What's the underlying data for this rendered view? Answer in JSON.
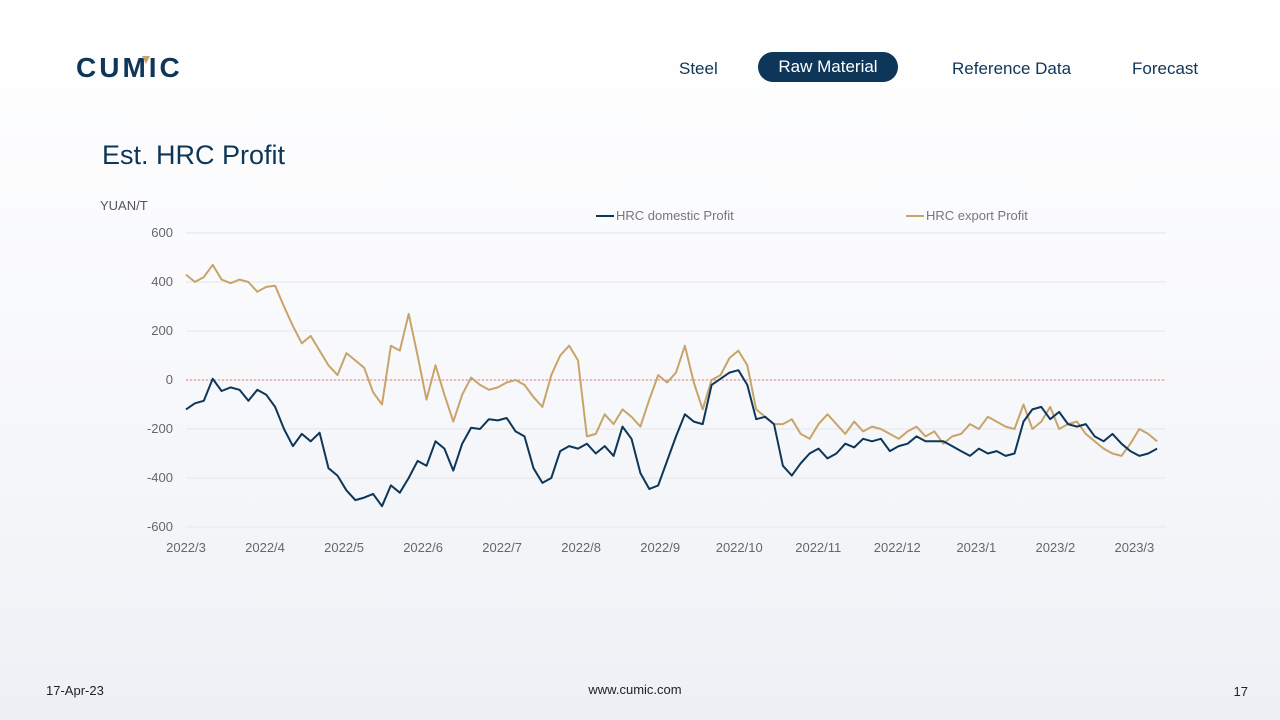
{
  "logo_text": "CUMIC",
  "nav": {
    "items": [
      {
        "label": "Steel",
        "active": false
      },
      {
        "label": "Raw Material",
        "active": true
      },
      {
        "label": "Reference Data",
        "active": false
      },
      {
        "label": "Forecast",
        "active": false
      }
    ]
  },
  "colors": {
    "brand_navy": "#0e3658",
    "brand_gold": "#c9a46a",
    "zero_line": "#e07a7a"
  },
  "page": {
    "title": "Est. HRC Profit"
  },
  "footer": {
    "date": "17-Apr-23",
    "url": "www.cumic.com",
    "page_number": "17"
  },
  "chart_data": {
    "type": "line",
    "title": "",
    "ylabel": "YUAN/T",
    "xlabel": "",
    "ylim": [
      -600,
      600
    ],
    "y_ticks": [
      600,
      400,
      200,
      0,
      -200,
      -400,
      -600
    ],
    "y_tick_labels": [
      "600",
      "400",
      "200",
      "0",
      "-200",
      "-400",
      "-600"
    ],
    "x_ticks": [
      "2022/3",
      "2022/4",
      "2022/5",
      "2022/6",
      "2022/7",
      "2022/8",
      "2022/9",
      "2022/10",
      "2022/11",
      "2022/12",
      "2023/1",
      "2023/2",
      "2023/3"
    ],
    "x_range": [
      2022.17,
      2023.27
    ],
    "reference_line": {
      "y": 0,
      "style": "dotted",
      "color": "#e07a7a"
    },
    "legend_position": "top",
    "series": [
      {
        "name": "HRC domestic Profit",
        "color": "#0e3658",
        "points": [
          [
            2022.17,
            -120
          ],
          [
            2022.18,
            -95
          ],
          [
            2022.19,
            -85
          ],
          [
            2022.2,
            5
          ],
          [
            2022.21,
            -45
          ],
          [
            2022.22,
            -30
          ],
          [
            2022.23,
            -40
          ],
          [
            2022.24,
            -85
          ],
          [
            2022.25,
            -40
          ],
          [
            2022.26,
            -60
          ],
          [
            2022.27,
            -110
          ],
          [
            2022.28,
            -200
          ],
          [
            2022.29,
            -270
          ],
          [
            2022.3,
            -220
          ],
          [
            2022.31,
            -250
          ],
          [
            2022.32,
            -215
          ],
          [
            2022.33,
            -360
          ],
          [
            2022.34,
            -390
          ],
          [
            2022.35,
            -450
          ],
          [
            2022.36,
            -490
          ],
          [
            2022.37,
            -480
          ],
          [
            2022.38,
            -465
          ],
          [
            2022.39,
            -515
          ],
          [
            2022.4,
            -430
          ],
          [
            2022.41,
            -460
          ],
          [
            2022.42,
            -400
          ],
          [
            2022.43,
            -330
          ],
          [
            2022.44,
            -350
          ],
          [
            2022.45,
            -250
          ],
          [
            2022.46,
            -280
          ],
          [
            2022.47,
            -370
          ],
          [
            2022.48,
            -260
          ],
          [
            2022.49,
            -195
          ],
          [
            2022.5,
            -200
          ],
          [
            2022.51,
            -160
          ],
          [
            2022.52,
            -165
          ],
          [
            2022.53,
            -155
          ],
          [
            2022.54,
            -210
          ],
          [
            2022.55,
            -230
          ],
          [
            2022.56,
            -360
          ],
          [
            2022.57,
            -420
          ],
          [
            2022.58,
            -400
          ],
          [
            2022.59,
            -290
          ],
          [
            2022.6,
            -270
          ],
          [
            2022.61,
            -280
          ],
          [
            2022.62,
            -260
          ],
          [
            2022.63,
            -300
          ],
          [
            2022.64,
            -270
          ],
          [
            2022.65,
            -310
          ],
          [
            2022.66,
            -190
          ],
          [
            2022.67,
            -240
          ],
          [
            2022.68,
            -380
          ],
          [
            2022.69,
            -445
          ],
          [
            2022.7,
            -430
          ],
          [
            2022.71,
            -330
          ],
          [
            2022.72,
            -230
          ],
          [
            2022.73,
            -140
          ],
          [
            2022.74,
            -170
          ],
          [
            2022.75,
            -180
          ],
          [
            2022.76,
            -20
          ],
          [
            2022.77,
            5
          ],
          [
            2022.78,
            30
          ],
          [
            2022.79,
            40
          ],
          [
            2022.8,
            -20
          ],
          [
            2022.81,
            -160
          ],
          [
            2022.82,
            -150
          ],
          [
            2022.83,
            -180
          ],
          [
            2022.84,
            -350
          ],
          [
            2022.85,
            -390
          ],
          [
            2022.86,
            -340
          ],
          [
            2022.87,
            -300
          ],
          [
            2022.88,
            -280
          ],
          [
            2022.89,
            -320
          ],
          [
            2022.9,
            -300
          ],
          [
            2022.91,
            -260
          ],
          [
            2022.92,
            -275
          ],
          [
            2022.93,
            -240
          ],
          [
            2022.94,
            -250
          ],
          [
            2022.95,
            -240
          ],
          [
            2022.96,
            -290
          ],
          [
            2022.97,
            -270
          ],
          [
            2022.98,
            -260
          ],
          [
            2022.99,
            -230
          ],
          [
            2023.0,
            -250
          ],
          [
            2023.01,
            -250
          ],
          [
            2023.02,
            -250
          ],
          [
            2023.03,
            -270
          ],
          [
            2023.04,
            -290
          ],
          [
            2023.05,
            -310
          ],
          [
            2023.06,
            -280
          ],
          [
            2023.07,
            -300
          ],
          [
            2023.08,
            -290
          ],
          [
            2023.09,
            -310
          ],
          [
            2023.1,
            -300
          ],
          [
            2023.11,
            -170
          ],
          [
            2023.12,
            -120
          ],
          [
            2023.13,
            -110
          ],
          [
            2023.14,
            -160
          ],
          [
            2023.15,
            -130
          ],
          [
            2023.16,
            -180
          ],
          [
            2023.17,
            -190
          ],
          [
            2023.18,
            -180
          ],
          [
            2023.19,
            -230
          ],
          [
            2023.2,
            -250
          ],
          [
            2023.21,
            -220
          ],
          [
            2023.22,
            -260
          ],
          [
            2023.23,
            -290
          ],
          [
            2023.24,
            -310
          ],
          [
            2023.25,
            -300
          ],
          [
            2023.26,
            -280
          ]
        ]
      },
      {
        "name": "HRC export Profit",
        "color": "#c9a46a",
        "points": [
          [
            2022.17,
            430
          ],
          [
            2022.18,
            400
          ],
          [
            2022.19,
            420
          ],
          [
            2022.2,
            470
          ],
          [
            2022.21,
            410
          ],
          [
            2022.22,
            395
          ],
          [
            2022.23,
            410
          ],
          [
            2022.24,
            400
          ],
          [
            2022.25,
            360
          ],
          [
            2022.26,
            380
          ],
          [
            2022.27,
            385
          ],
          [
            2022.28,
            300
          ],
          [
            2022.29,
            220
          ],
          [
            2022.3,
            150
          ],
          [
            2022.31,
            180
          ],
          [
            2022.32,
            120
          ],
          [
            2022.33,
            60
          ],
          [
            2022.34,
            20
          ],
          [
            2022.35,
            110
          ],
          [
            2022.36,
            80
          ],
          [
            2022.37,
            50
          ],
          [
            2022.38,
            -50
          ],
          [
            2022.39,
            -100
          ],
          [
            2022.4,
            140
          ],
          [
            2022.41,
            120
          ],
          [
            2022.42,
            270
          ],
          [
            2022.43,
            100
          ],
          [
            2022.44,
            -80
          ],
          [
            2022.45,
            60
          ],
          [
            2022.46,
            -60
          ],
          [
            2022.47,
            -170
          ],
          [
            2022.48,
            -60
          ],
          [
            2022.49,
            10
          ],
          [
            2022.5,
            -20
          ],
          [
            2022.51,
            -40
          ],
          [
            2022.52,
            -30
          ],
          [
            2022.53,
            -10
          ],
          [
            2022.54,
            0
          ],
          [
            2022.55,
            -20
          ],
          [
            2022.56,
            -70
          ],
          [
            2022.57,
            -110
          ],
          [
            2022.58,
            20
          ],
          [
            2022.59,
            100
          ],
          [
            2022.6,
            140
          ],
          [
            2022.61,
            80
          ],
          [
            2022.62,
            -230
          ],
          [
            2022.63,
            -220
          ],
          [
            2022.64,
            -140
          ],
          [
            2022.65,
            -180
          ],
          [
            2022.66,
            -120
          ],
          [
            2022.67,
            -150
          ],
          [
            2022.68,
            -190
          ],
          [
            2022.69,
            -80
          ],
          [
            2022.7,
            20
          ],
          [
            2022.71,
            -10
          ],
          [
            2022.72,
            30
          ],
          [
            2022.73,
            140
          ],
          [
            2022.74,
            -10
          ],
          [
            2022.75,
            -120
          ],
          [
            2022.76,
            0
          ],
          [
            2022.77,
            20
          ],
          [
            2022.78,
            90
          ],
          [
            2022.79,
            120
          ],
          [
            2022.8,
            60
          ],
          [
            2022.81,
            -120
          ],
          [
            2022.82,
            -150
          ],
          [
            2022.83,
            -180
          ],
          [
            2022.84,
            -180
          ],
          [
            2022.85,
            -160
          ],
          [
            2022.86,
            -220
          ],
          [
            2022.87,
            -240
          ],
          [
            2022.88,
            -180
          ],
          [
            2022.89,
            -140
          ],
          [
            2022.9,
            -180
          ],
          [
            2022.91,
            -220
          ],
          [
            2022.92,
            -170
          ],
          [
            2022.93,
            -210
          ],
          [
            2022.94,
            -190
          ],
          [
            2022.95,
            -200
          ],
          [
            2022.96,
            -220
          ],
          [
            2022.97,
            -240
          ],
          [
            2022.98,
            -210
          ],
          [
            2022.99,
            -190
          ],
          [
            2023.0,
            -230
          ],
          [
            2023.01,
            -210
          ],
          [
            2023.02,
            -260
          ],
          [
            2023.03,
            -230
          ],
          [
            2023.04,
            -220
          ],
          [
            2023.05,
            -180
          ],
          [
            2023.06,
            -200
          ],
          [
            2023.07,
            -150
          ],
          [
            2023.08,
            -170
          ],
          [
            2023.09,
            -190
          ],
          [
            2023.1,
            -200
          ],
          [
            2023.11,
            -100
          ],
          [
            2023.12,
            -200
          ],
          [
            2023.13,
            -170
          ],
          [
            2023.14,
            -110
          ],
          [
            2023.15,
            -200
          ],
          [
            2023.16,
            -180
          ],
          [
            2023.17,
            -170
          ],
          [
            2023.18,
            -220
          ],
          [
            2023.19,
            -250
          ],
          [
            2023.2,
            -280
          ],
          [
            2023.21,
            -300
          ],
          [
            2023.22,
            -310
          ],
          [
            2023.23,
            -260
          ],
          [
            2023.24,
            -200
          ],
          [
            2023.25,
            -220
          ],
          [
            2023.26,
            -250
          ]
        ]
      }
    ]
  }
}
